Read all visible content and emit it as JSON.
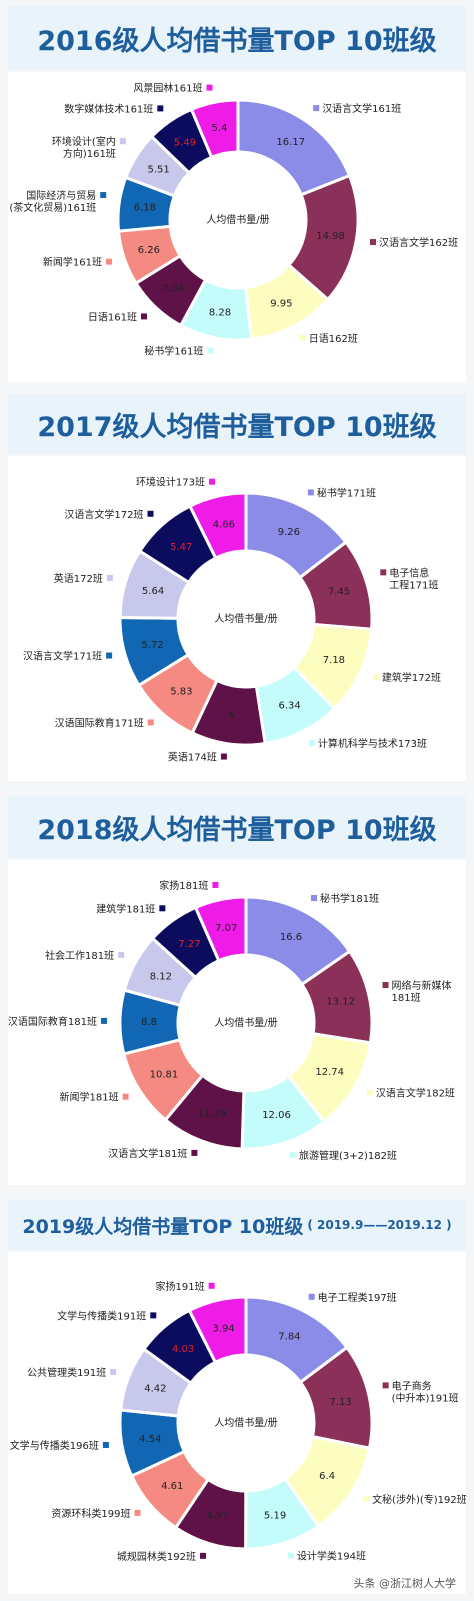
{
  "center_label": "人均借书量/册",
  "watermark": "头条 @浙江树人大学",
  "value_highlight_color": "#e0202a",
  "slice_colors": [
    "#8b8be8",
    "#8b3058",
    "#fdfdc0",
    "#c4fcfc",
    "#5e1248",
    "#f58a82",
    "#1267b4",
    "#c8c8ec",
    "#0c0c5e",
    "#ef1ce8"
  ],
  "chart_data": [
    {
      "type": "pie",
      "title": "2016级人均借书量TOP 10班级",
      "subtitle": "",
      "categories": [
        "汉语言文学161班",
        "汉语言文学162班",
        "日语162班",
        "秘书学161班",
        "日语161班",
        "新闻学161班",
        "国际经济与贸易(茶文化贸易)161班",
        "环境设计(室内方向)161班",
        "数字媒体技术161班",
        "风景园林161班"
      ],
      "label_lines": [
        [
          "汉语言文学161班"
        ],
        [
          "汉语言文学162班"
        ],
        [
          "日语162班"
        ],
        [
          "秘书学161班"
        ],
        [
          "日语161班"
        ],
        [
          "新闻学161班"
        ],
        [
          "国际经济与贸易",
          "(茶文化贸易)161班"
        ],
        [
          "环境设计(室内",
          "方向)161班"
        ],
        [
          "数字媒体技术161班"
        ],
        [
          "风景园林161班"
        ]
      ],
      "values": [
        16.17,
        14.98,
        9.95,
        8.28,
        7.04,
        6.26,
        6.18,
        5.51,
        5.49,
        5.4
      ],
      "value_labels": [
        "16.17",
        "14.98",
        "9.95",
        "8.28",
        "7.04",
        "6.26",
        "6.18",
        "5.51",
        "5.49",
        "5.4"
      ]
    },
    {
      "type": "pie",
      "title": "2017级人均借书量TOP 10班级",
      "subtitle": "",
      "categories": [
        "秘书学171班",
        "电子信息工程171班",
        "建筑学172班",
        "计算机科学与技术173班",
        "英语174班",
        "汉语国际教育171班",
        "汉语言文学171班",
        "英语172班",
        "汉语言文学172班",
        "环境设计173班"
      ],
      "label_lines": [
        [
          "秘书学171班"
        ],
        [
          "电子信息",
          "工程171班"
        ],
        [
          "建筑学172班"
        ],
        [
          "计算机科学与技术173班"
        ],
        [
          "英语174班"
        ],
        [
          "汉语国际教育171班"
        ],
        [
          "汉语言文学171班"
        ],
        [
          "英语172班"
        ],
        [
          "汉语言文学172班"
        ],
        [
          "环境设计173班"
        ]
      ],
      "values": [
        9.26,
        7.45,
        7.18,
        6.34,
        6,
        5.83,
        5.72,
        5.64,
        5.47,
        4.66
      ],
      "value_labels": [
        "9.26",
        "7.45",
        "7.18",
        "6.34",
        "6",
        "5.83",
        "5.72",
        "5.64",
        "5.47",
        "4.66"
      ]
    },
    {
      "type": "pie",
      "title": "2018级人均借书量TOP 10班级",
      "subtitle": "",
      "categories": [
        "秘书学181班",
        "网络与新媒体181班",
        "汉语言文学182班",
        "旅游管理(3+2)182班",
        "汉语言文学181班",
        "新闻学181班",
        "汉语国际教育181班",
        "社会工作181班",
        "建筑学181班",
        "家扬181班"
      ],
      "label_lines": [
        [
          "秘书学181班"
        ],
        [
          "网络与新媒体",
          "181班"
        ],
        [
          "汉语言文学182班"
        ],
        [
          "旅游管理(3+2)182班"
        ],
        [
          "汉语言文学181班"
        ],
        [
          "新闻学181班"
        ],
        [
          "汉语国际教育181班"
        ],
        [
          "社会工作181班"
        ],
        [
          "建筑学181班"
        ],
        [
          "家扬181班"
        ]
      ],
      "values": [
        16.6,
        13.12,
        12.74,
        12.06,
        11.39,
        10.81,
        8.8,
        8.12,
        7.27,
        7.07
      ],
      "value_labels": [
        "16.6",
        "13.12",
        "12.74",
        "12.06",
        "11.39",
        "10.81",
        "8.8",
        "8.12",
        "7.27",
        "7.07"
      ]
    },
    {
      "type": "pie",
      "title": "2019级人均借书量TOP 10班级",
      "subtitle": "( 2019.9——2019.12 )",
      "categories": [
        "电子工程类197班",
        "电子商务(中升本)191班",
        "文秘(涉外)(专)192班",
        "设计学类194班",
        "城规园林类192班",
        "资源环科类199班",
        "文学与传播类196班",
        "公共管理类191班",
        "文学与传播类191班",
        "家扬191班"
      ],
      "label_lines": [
        [
          "电子工程类197班"
        ],
        [
          "电子商务",
          "(中升本)191班"
        ],
        [
          "文秘(涉外)(专)192班"
        ],
        [
          "设计学类194班"
        ],
        [
          "城规园林类192班"
        ],
        [
          "资源环科类199班"
        ],
        [
          "文学与传播类196班"
        ],
        [
          "公共管理类191班"
        ],
        [
          "文学与传播类191班"
        ],
        [
          "家扬191班"
        ]
      ],
      "values": [
        7.84,
        7.13,
        6.4,
        5.19,
        4.97,
        4.61,
        4.54,
        4.42,
        4.03,
        3.94
      ],
      "value_labels": [
        "7.84",
        "7.13",
        "6.4",
        "5.19",
        "4.97",
        "4.61",
        "4.54",
        "4.42",
        "4.03",
        "3.94"
      ]
    }
  ]
}
